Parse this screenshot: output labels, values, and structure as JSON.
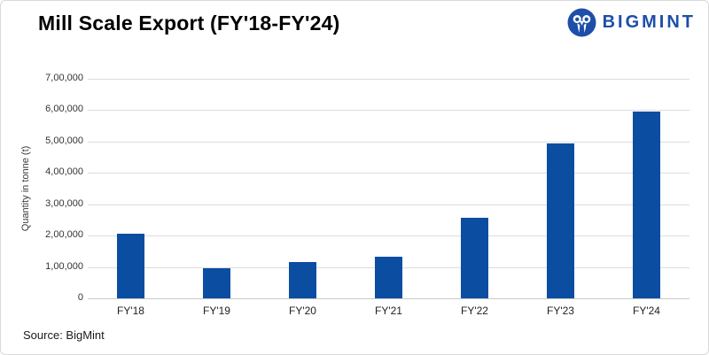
{
  "header": {
    "title": "Mill Scale Export (FY'18-FY'24)",
    "logo_text": "BIGMINT"
  },
  "footer": {
    "source": "Source: BigMint"
  },
  "chart_data": {
    "type": "bar",
    "title": "Mill Scale Export (FY'18-FY'24)",
    "categories": [
      "FY'18",
      "FY'19",
      "FY'20",
      "FY'21",
      "FY'22",
      "FY'23",
      "FY'24"
    ],
    "values": [
      207000,
      95000,
      115000,
      132000,
      257000,
      495000,
      596000
    ],
    "xlabel": "",
    "ylabel": "Quantity in tonne (t)",
    "ylim": [
      0,
      700000
    ],
    "ytick_interval": 100000,
    "yticks": [
      {
        "value": 0,
        "label": "0"
      },
      {
        "value": 100000,
        "label": "1,00,000"
      },
      {
        "value": 200000,
        "label": "2,00,000"
      },
      {
        "value": 300000,
        "label": "3,00,000"
      },
      {
        "value": 400000,
        "label": "4,00,000"
      },
      {
        "value": 500000,
        "label": "5,00,000"
      },
      {
        "value": 600000,
        "label": "6,00,000"
      },
      {
        "value": 700000,
        "label": "7,00,000"
      }
    ],
    "grid": "horizontal",
    "legend": "none",
    "source_note": "Source: BigMint"
  },
  "colors": {
    "bar": "#0b4da1",
    "logo": "#1d4fa8",
    "gridline": "#dcdcdc",
    "axis_line": "#c8c8c8",
    "border": "#d9d9d9",
    "title_text": "#000000",
    "axis_text": "#333333"
  }
}
